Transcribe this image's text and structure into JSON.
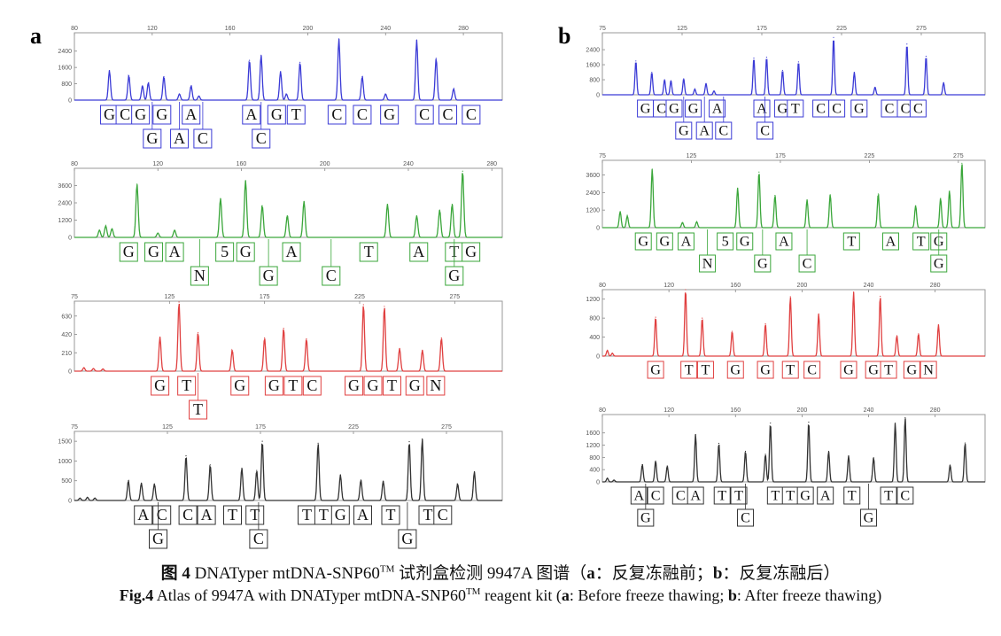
{
  "figure": {
    "panel_a": "a",
    "panel_b": "b",
    "caption_zh": {
      "fig_label": "图 4",
      "text_1": " DNATyper mtDNA-SNP60",
      "tm": "TM",
      "text_2": " 试剂盒检测 9947A 图谱（",
      "a": "a",
      "text_3": "：反复冻融前；",
      "b": "b",
      "text_4": "：反复冻融后）"
    },
    "caption_en": {
      "fig_label": "Fig.4",
      "text_1": " Atlas of 9947A with DNATyper mtDNA-SNP60",
      "tm": "TM",
      "text_2": " reagent kit (",
      "a": "a",
      "text_3": ": Before freeze thawing; ",
      "b": "b",
      "text_4": ": After freeze thawing)"
    }
  },
  "chart_data": [
    {
      "panel": "a",
      "channel": "blue",
      "color": "#3b3bd6",
      "xlim": [
        80,
        300
      ],
      "ylim": [
        0,
        3300
      ],
      "xticks": [
        80,
        120,
        160,
        200,
        240,
        280
      ],
      "yticks": [
        0,
        800,
        1600,
        2400
      ],
      "peaks": [
        [
          98,
          1450
        ],
        [
          108,
          1200
        ],
        [
          115,
          700
        ],
        [
          118,
          850
        ],
        [
          126,
          1150
        ],
        [
          134,
          300
        ],
        [
          140,
          700
        ],
        [
          144,
          200
        ],
        [
          170,
          1950
        ],
        [
          176,
          2200
        ],
        [
          186,
          1400
        ],
        [
          189,
          300
        ],
        [
          196,
          1850
        ],
        [
          216,
          3000
        ],
        [
          228,
          1150
        ],
        [
          240,
          300
        ],
        [
          256,
          2950
        ],
        [
          266,
          2050
        ],
        [
          275,
          550
        ]
      ],
      "labels_row1": [
        [
          98,
          "G"
        ],
        [
          106,
          "C"
        ],
        [
          114,
          "G"
        ],
        [
          125,
          "G"
        ],
        [
          140,
          "A"
        ],
        [
          171,
          "A"
        ],
        [
          184,
          "G"
        ],
        [
          194,
          "T"
        ],
        [
          215,
          "C"
        ],
        [
          228,
          "C"
        ],
        [
          242,
          "G"
        ],
        [
          260,
          "C"
        ],
        [
          272,
          "C"
        ],
        [
          284,
          "C"
        ]
      ],
      "labels_row2": [
        [
          120,
          "G"
        ],
        [
          134,
          "A"
        ],
        [
          146,
          "C"
        ],
        [
          176,
          "C"
        ]
      ]
    },
    {
      "panel": "a",
      "channel": "green",
      "color": "#3aa63a",
      "xlim": [
        80,
        285
      ],
      "ylim": [
        0,
        4800
      ],
      "xticks": [
        80,
        120,
        160,
        200,
        240,
        280
      ],
      "yticks": [
        0,
        1200,
        2400,
        3600
      ],
      "peaks": [
        [
          92,
          500
        ],
        [
          95,
          800
        ],
        [
          98,
          600
        ],
        [
          110,
          3700
        ],
        [
          120,
          300
        ],
        [
          128,
          500
        ],
        [
          150,
          2700
        ],
        [
          162,
          3950
        ],
        [
          170,
          2200
        ],
        [
          182,
          1500
        ],
        [
          190,
          2500
        ],
        [
          230,
          2300
        ],
        [
          244,
          1500
        ],
        [
          255,
          1900
        ],
        [
          261,
          2300
        ],
        [
          266,
          4600
        ]
      ],
      "labels_row1": [
        [
          106,
          "G"
        ],
        [
          118,
          "G"
        ],
        [
          128,
          "A"
        ],
        [
          152,
          "5"
        ],
        [
          162,
          "G"
        ],
        [
          184,
          "A"
        ],
        [
          221,
          "T"
        ],
        [
          245,
          "A"
        ],
        [
          262,
          "T"
        ],
        [
          270,
          "G"
        ]
      ],
      "labels_row2": [
        [
          140,
          "N"
        ],
        [
          173,
          "G"
        ],
        [
          203,
          "C"
        ],
        [
          262,
          "G"
        ]
      ]
    },
    {
      "panel": "a",
      "channel": "red",
      "color": "#e04040",
      "xlim": [
        75,
        300
      ],
      "ylim": [
        0,
        800
      ],
      "xticks": [
        75,
        125,
        175,
        225,
        275
      ],
      "yticks": [
        0,
        210,
        420,
        630
      ],
      "peaks": [
        [
          80,
          40
        ],
        [
          85,
          30
        ],
        [
          90,
          25
        ],
        [
          120,
          390
        ],
        [
          130,
          790
        ],
        [
          140,
          440
        ],
        [
          158,
          240
        ],
        [
          175,
          380
        ],
        [
          185,
          490
        ],
        [
          197,
          370
        ],
        [
          227,
          760
        ],
        [
          238,
          740
        ],
        [
          246,
          260
        ],
        [
          258,
          240
        ],
        [
          268,
          380
        ]
      ],
      "labels_row1": [
        [
          120,
          "G"
        ],
        [
          134,
          "T"
        ],
        [
          162,
          "G"
        ],
        [
          180,
          "G"
        ],
        [
          190,
          "T"
        ],
        [
          200,
          "C"
        ],
        [
          222,
          "G"
        ],
        [
          232,
          "G"
        ],
        [
          242,
          "T"
        ],
        [
          254,
          "G"
        ],
        [
          265,
          "N"
        ]
      ],
      "labels_row2": [
        [
          140,
          "T"
        ]
      ]
    },
    {
      "panel": "a",
      "channel": "black",
      "color": "#333333",
      "xlim": [
        75,
        305
      ],
      "ylim": [
        0,
        1750
      ],
      "xticks": [
        75,
        125,
        175,
        225,
        275
      ],
      "yticks": [
        0,
        500,
        1000,
        1500
      ],
      "peaks": [
        [
          78,
          60
        ],
        [
          82,
          80
        ],
        [
          86,
          60
        ],
        [
          104,
          500
        ],
        [
          111,
          440
        ],
        [
          118,
          420
        ],
        [
          135,
          1130
        ],
        [
          148,
          900
        ],
        [
          165,
          820
        ],
        [
          173,
          760
        ],
        [
          176,
          1500
        ],
        [
          206,
          1450
        ],
        [
          218,
          650
        ],
        [
          229,
          520
        ],
        [
          241,
          490
        ],
        [
          255,
          1490
        ],
        [
          262,
          1560
        ],
        [
          281,
          420
        ],
        [
          290,
          730
        ]
      ],
      "labels_row1": [
        [
          112,
          "A"
        ],
        [
          122,
          "C"
        ],
        [
          136,
          "C"
        ],
        [
          146,
          "A"
        ],
        [
          160,
          "T"
        ],
        [
          172,
          "T"
        ],
        [
          200,
          "T"
        ],
        [
          209,
          "T"
        ],
        [
          218,
          "G"
        ],
        [
          230,
          "A"
        ],
        [
          245,
          "T"
        ],
        [
          265,
          "T"
        ],
        [
          273,
          "C"
        ]
      ],
      "labels_row2": [
        [
          120,
          "G"
        ],
        [
          174,
          "C"
        ],
        [
          254,
          "G"
        ]
      ]
    },
    {
      "panel": "b",
      "channel": "blue",
      "color": "#3b3bd6",
      "xlim": [
        75,
        315
      ],
      "ylim": [
        0,
        3300
      ],
      "xticks": [
        75,
        125,
        175,
        225,
        275
      ],
      "yticks": [
        0,
        800,
        1600,
        2400
      ],
      "peaks": [
        [
          96,
          1800
        ],
        [
          106,
          1200
        ],
        [
          114,
          800
        ],
        [
          118,
          750
        ],
        [
          126,
          850
        ],
        [
          133,
          300
        ],
        [
          140,
          600
        ],
        [
          145,
          200
        ],
        [
          170,
          1950
        ],
        [
          178,
          2000
        ],
        [
          188,
          1300
        ],
        [
          198,
          1750
        ],
        [
          220,
          3050
        ],
        [
          233,
          1200
        ],
        [
          246,
          400
        ],
        [
          266,
          2700
        ],
        [
          278,
          2050
        ],
        [
          289,
          650
        ]
      ],
      "labels_row1": [
        [
          102,
          "G"
        ],
        [
          112,
          "C"
        ],
        [
          120,
          "G"
        ],
        [
          132,
          "G"
        ],
        [
          147,
          "A"
        ],
        [
          175,
          "A"
        ],
        [
          188,
          "G"
        ],
        [
          196,
          "T"
        ],
        [
          212,
          "C"
        ],
        [
          222,
          "C"
        ],
        [
          236,
          "G"
        ],
        [
          255,
          "C"
        ],
        [
          265,
          "C"
        ],
        [
          273,
          "C"
        ]
      ],
      "labels_row2": [
        [
          126,
          "G"
        ],
        [
          139,
          "A"
        ],
        [
          151,
          "C"
        ],
        [
          177,
          "C"
        ]
      ]
    },
    {
      "panel": "b",
      "channel": "green",
      "color": "#3aa63a",
      "xlim": [
        75,
        290
      ],
      "ylim": [
        0,
        4600
      ],
      "xticks": [
        75,
        125,
        175,
        225,
        275
      ],
      "yticks": [
        0,
        1200,
        2400,
        3600
      ],
      "peaks": [
        [
          85,
          1100
        ],
        [
          89,
          800
        ],
        [
          103,
          4000
        ],
        [
          120,
          350
        ],
        [
          128,
          400
        ],
        [
          151,
          2700
        ],
        [
          163,
          3800
        ],
        [
          172,
          2200
        ],
        [
          190,
          1900
        ],
        [
          203,
          2250
        ],
        [
          230,
          2300
        ],
        [
          251,
          1500
        ],
        [
          265,
          2000
        ],
        [
          270,
          2500
        ],
        [
          277,
          4400
        ]
      ],
      "labels_row1": [
        [
          98,
          "G"
        ],
        [
          110,
          "G"
        ],
        [
          122,
          "A"
        ],
        [
          144,
          "5"
        ],
        [
          155,
          "G"
        ],
        [
          177,
          "A"
        ],
        [
          215,
          "T"
        ],
        [
          237,
          "A"
        ],
        [
          254,
          "T"
        ],
        [
          264,
          "G"
        ]
      ],
      "labels_row2": [
        [
          134,
          "N"
        ],
        [
          165,
          "G"
        ],
        [
          190,
          "C"
        ],
        [
          264,
          "G"
        ]
      ]
    },
    {
      "panel": "b",
      "channel": "red",
      "color": "#e04040",
      "xlim": [
        80,
        310
      ],
      "ylim": [
        0,
        1400
      ],
      "xticks": [
        80,
        120,
        160,
        200,
        240,
        280
      ],
      "yticks": [
        0,
        400,
        800,
        1200
      ],
      "peaks": [
        [
          83,
          120
        ],
        [
          86,
          60
        ],
        [
          112,
          820
        ],
        [
          130,
          1400
        ],
        [
          140,
          800
        ],
        [
          158,
          520
        ],
        [
          178,
          680
        ],
        [
          193,
          1250
        ],
        [
          210,
          890
        ],
        [
          231,
          1350
        ],
        [
          247,
          1260
        ],
        [
          257,
          430
        ],
        [
          270,
          470
        ],
        [
          282,
          660
        ]
      ],
      "labels_row1": [
        [
          112,
          "G"
        ],
        [
          132,
          "T"
        ],
        [
          142,
          "T"
        ],
        [
          160,
          "G"
        ],
        [
          178,
          "G"
        ],
        [
          193,
          "T"
        ],
        [
          206,
          "C"
        ],
        [
          228,
          "G"
        ],
        [
          243,
          "G"
        ],
        [
          252,
          "T"
        ],
        [
          266,
          "G"
        ],
        [
          276,
          "N"
        ]
      ],
      "labels_row2": []
    },
    {
      "panel": "b",
      "channel": "black",
      "color": "#333333",
      "xlim": [
        80,
        310
      ],
      "ylim": [
        0,
        2200
      ],
      "xticks": [
        80,
        120,
        160,
        200,
        240,
        280
      ],
      "yticks": [
        0,
        400,
        800,
        1200,
        1600
      ],
      "peaks": [
        [
          83,
          120
        ],
        [
          87,
          60
        ],
        [
          104,
          560
        ],
        [
          112,
          680
        ],
        [
          119,
          520
        ],
        [
          136,
          1550
        ],
        [
          150,
          1260
        ],
        [
          166,
          1000
        ],
        [
          178,
          900
        ],
        [
          181,
          1920
        ],
        [
          204,
          1950
        ],
        [
          216,
          1000
        ],
        [
          228,
          850
        ],
        [
          243,
          790
        ],
        [
          256,
          1920
        ],
        [
          262,
          2100
        ],
        [
          289,
          550
        ],
        [
          298,
          1270
        ]
      ],
      "labels_row1": [
        [
          102,
          "A"
        ],
        [
          112,
          "C"
        ],
        [
          127,
          "C"
        ],
        [
          136,
          "A"
        ],
        [
          152,
          "T"
        ],
        [
          162,
          "T"
        ],
        [
          184,
          "T"
        ],
        [
          193,
          "T"
        ],
        [
          202,
          "G"
        ],
        [
          214,
          "A"
        ],
        [
          230,
          "T"
        ],
        [
          252,
          "T"
        ],
        [
          262,
          "C"
        ]
      ],
      "labels_row2": [
        [
          106,
          "G"
        ],
        [
          166,
          "C"
        ],
        [
          240,
          "G"
        ]
      ]
    }
  ]
}
